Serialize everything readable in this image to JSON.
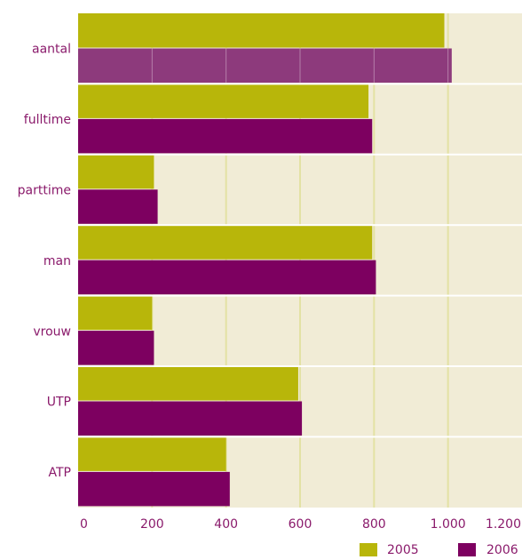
{
  "chart_data": {
    "type": "bar",
    "orientation": "horizontal",
    "categories": [
      "aantal",
      "fulltime",
      "parttime",
      "man",
      "vrouw",
      "UTP",
      "ATP"
    ],
    "series": [
      {
        "name": "2005",
        "color": "#b8b60a",
        "values": [
          990,
          785,
          205,
          795,
          200,
          595,
          400
        ]
      },
      {
        "name": "2006",
        "color": "#7d0060",
        "values": [
          1010,
          795,
          215,
          805,
          205,
          605,
          410
        ]
      }
    ],
    "highlight": {
      "category": "aantal",
      "series": "2006",
      "color": "#8d3a7c"
    },
    "xlim": [
      0,
      1200
    ],
    "x_ticks": [
      0,
      200,
      400,
      600,
      800,
      1000,
      1200
    ],
    "x_tick_labels": [
      "0",
      "200",
      "400",
      "600",
      "800",
      "1.000",
      "1.200"
    ],
    "grid": true,
    "plot_background": "#f1ecd6",
    "grid_color": "#e3e2a4",
    "separator_color": "#ffffff",
    "label_color": "#8a1a6b",
    "legend_position": "bottom-right"
  }
}
